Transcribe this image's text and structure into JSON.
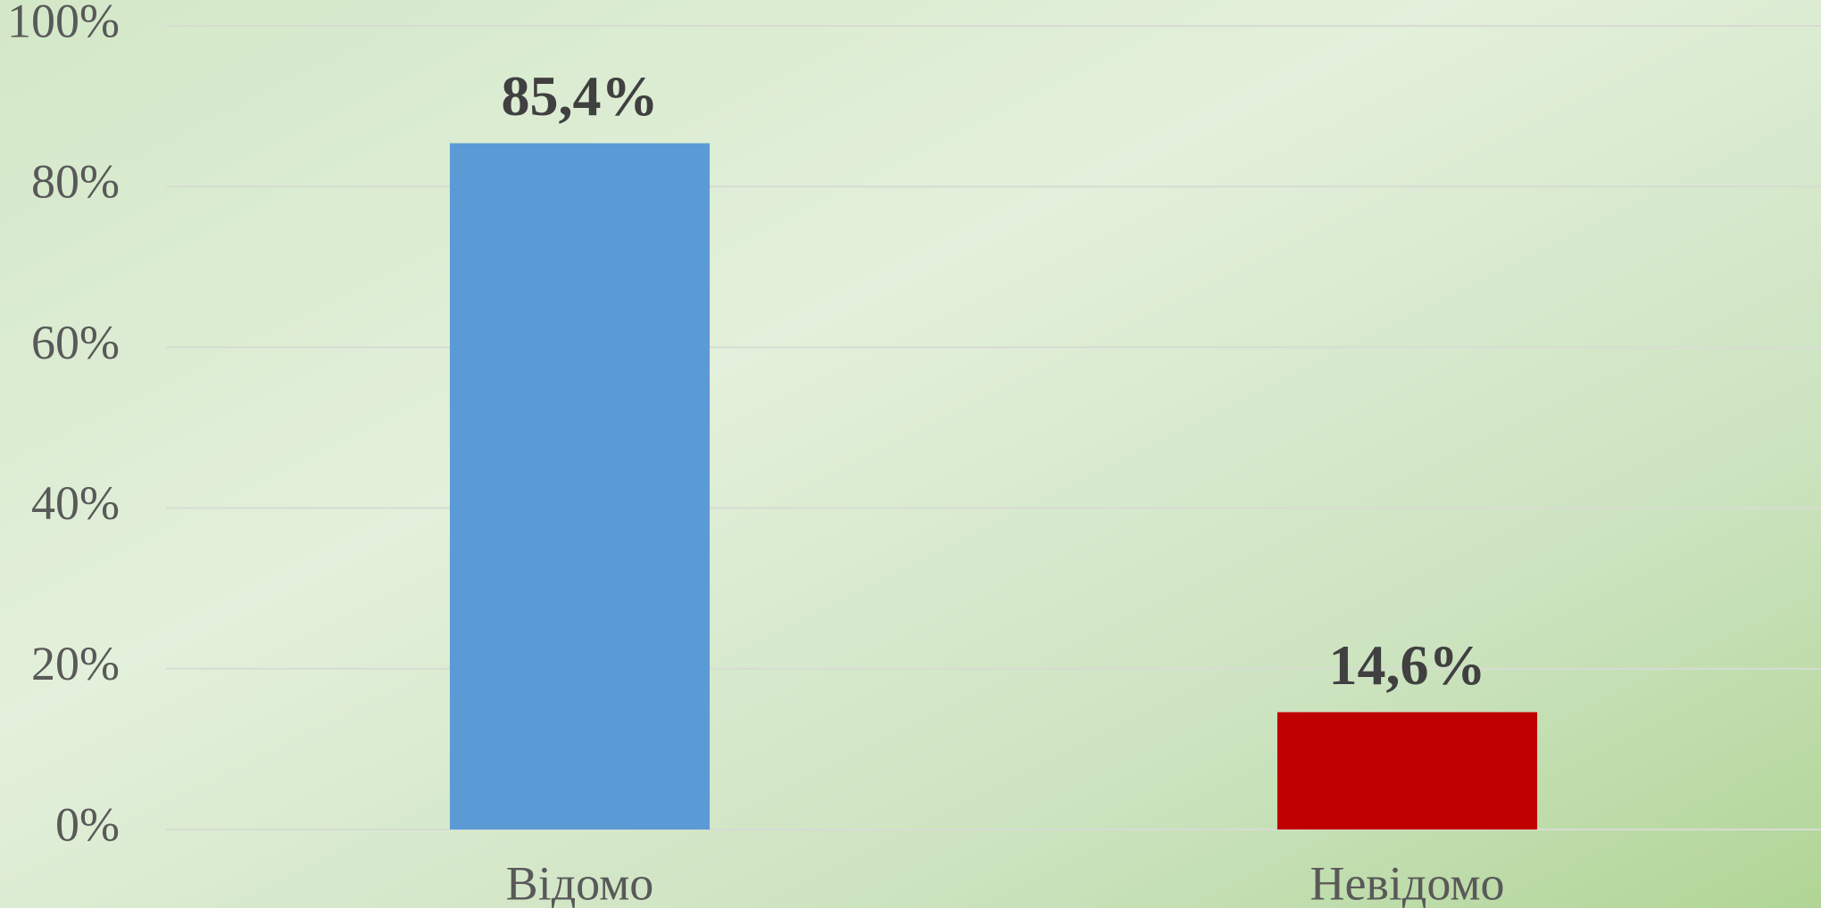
{
  "chart_data": {
    "type": "bar",
    "categories": [
      "Відомо",
      "Невідомо"
    ],
    "values": [
      85.4,
      14.6
    ],
    "value_labels": [
      "85,4%",
      "14,6%"
    ],
    "colors": [
      "#5b9bd5",
      "#c00000"
    ],
    "ylim": [
      0,
      100
    ],
    "yticks": [
      {
        "value": 0,
        "label": "0%"
      },
      {
        "value": 20,
        "label": "20%"
      },
      {
        "value": 40,
        "label": "40%"
      },
      {
        "value": 60,
        "label": "60%"
      },
      {
        "value": 80,
        "label": "80%"
      },
      {
        "value": 100,
        "label": "100%"
      }
    ],
    "grid": true
  }
}
